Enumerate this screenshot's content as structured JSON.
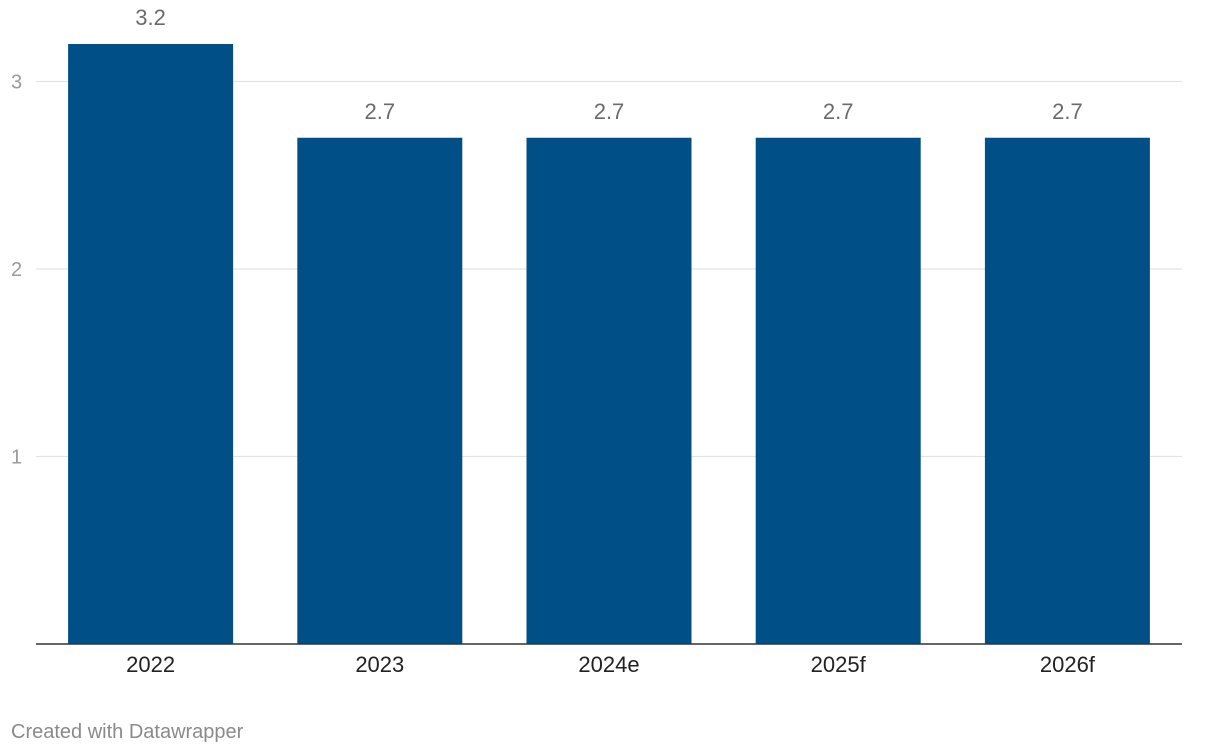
{
  "chart_data": {
    "type": "bar",
    "categories": [
      "2022",
      "2023",
      "2024e",
      "2025f",
      "2026f"
    ],
    "values": [
      3.2,
      2.7,
      2.7,
      2.7,
      2.7
    ],
    "value_labels": [
      "3.2",
      "2.7",
      "2.7",
      "2.7",
      "2.7"
    ],
    "y_ticks": [
      1,
      2,
      3
    ],
    "ylim": [
      0,
      3.2
    ],
    "grid": true,
    "title": "",
    "xlabel": "",
    "ylabel": "",
    "colors": {
      "bar": "#004f86",
      "grid": "#e3e3e3",
      "axis": "#333333",
      "tick_label": "#9a9a9a",
      "value_label": "#6b6b6b",
      "category_label": "#222222"
    }
  },
  "footer": {
    "credit": "Created with Datawrapper"
  }
}
